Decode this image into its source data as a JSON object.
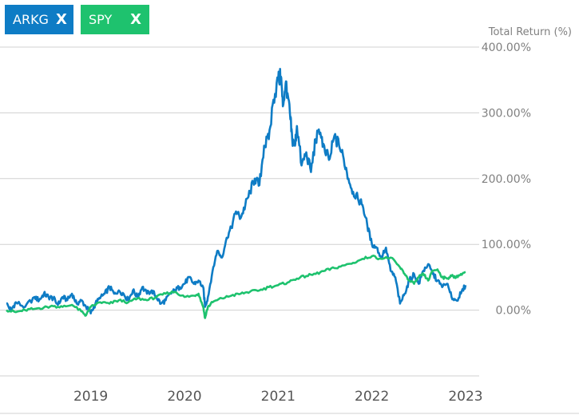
{
  "legend": [
    {
      "label": "ARKG",
      "close": "X",
      "color": "#0e7cc5"
    },
    {
      "label": "SPY",
      "close": "X",
      "color": "#1ec26e"
    }
  ],
  "chart_data": {
    "type": "line",
    "ylabel": "Total Return (%)",
    "y_ticks": [
      "400.00%",
      "300.00%",
      "200.00%",
      "100.00%",
      "0.00%"
    ],
    "y_tick_values": [
      400,
      300,
      200,
      100,
      0
    ],
    "ylim": [
      -100,
      400
    ],
    "x_ticks": [
      "2019",
      "2020",
      "2021",
      "2022",
      "2023"
    ],
    "x_tick_values": [
      2019,
      2020,
      2021,
      2022,
      2023
    ],
    "xlim": [
      2018.1,
      2023.0
    ],
    "series": [
      {
        "name": "ARKG",
        "color": "#0e7cc5",
        "x": [
          2018.1,
          2018.15,
          2018.2,
          2018.3,
          2018.4,
          2018.45,
          2018.5,
          2018.55,
          2018.6,
          2018.65,
          2018.7,
          2018.75,
          2018.8,
          2018.85,
          2018.9,
          2018.95,
          2019.0,
          2019.05,
          2019.1,
          2019.15,
          2019.2,
          2019.25,
          2019.3,
          2019.35,
          2019.4,
          2019.45,
          2019.5,
          2019.55,
          2019.6,
          2019.65,
          2019.7,
          2019.75,
          2019.8,
          2019.85,
          2019.9,
          2019.95,
          2020.0,
          2020.05,
          2020.1,
          2020.15,
          2020.2,
          2020.22,
          2020.25,
          2020.3,
          2020.35,
          2020.4,
          2020.45,
          2020.5,
          2020.55,
          2020.6,
          2020.65,
          2020.7,
          2020.75,
          2020.8,
          2020.85,
          2020.9,
          2020.95,
          2021.0,
          2021.03,
          2021.05,
          2021.08,
          2021.1,
          2021.13,
          2021.15,
          2021.18,
          2021.2,
          2021.25,
          2021.3,
          2021.35,
          2021.4,
          2021.45,
          2021.5,
          2021.55,
          2021.6,
          2021.65,
          2021.7,
          2021.75,
          2021.8,
          2021.85,
          2021.9,
          2021.95,
          2022.0,
          2022.05,
          2022.1,
          2022.15,
          2022.2,
          2022.25,
          2022.3,
          2022.35,
          2022.4,
          2022.45,
          2022.5,
          2022.55,
          2022.6,
          2022.65,
          2022.7,
          2022.75,
          2022.8,
          2022.85,
          2022.9,
          2022.95,
          2023.0
        ],
        "y": [
          10,
          0,
          12,
          5,
          20,
          15,
          25,
          20,
          18,
          8,
          20,
          15,
          25,
          10,
          15,
          5,
          -5,
          10,
          18,
          25,
          35,
          25,
          30,
          25,
          15,
          30,
          20,
          35,
          25,
          30,
          20,
          10,
          15,
          25,
          30,
          35,
          40,
          50,
          40,
          45,
          35,
          5,
          20,
          60,
          90,
          80,
          110,
          125,
          150,
          140,
          160,
          180,
          200,
          190,
          250,
          260,
          320,
          350,
          355,
          310,
          345,
          330,
          290,
          260,
          250,
          280,
          220,
          240,
          210,
          260,
          270,
          240,
          230,
          265,
          250,
          230,
          200,
          180,
          170,
          160,
          130,
          100,
          95,
          80,
          95,
          60,
          50,
          10,
          25,
          45,
          55,
          40,
          60,
          70,
          55,
          45,
          35,
          40,
          20,
          15,
          25,
          38
        ]
      },
      {
        "name": "SPY",
        "color": "#1ec26e",
        "x": [
          2018.1,
          2018.2,
          2018.3,
          2018.4,
          2018.5,
          2018.6,
          2018.7,
          2018.8,
          2018.9,
          2018.95,
          2019.0,
          2019.1,
          2019.2,
          2019.3,
          2019.4,
          2019.5,
          2019.6,
          2019.7,
          2019.8,
          2019.9,
          2020.0,
          2020.1,
          2020.15,
          2020.2,
          2020.22,
          2020.25,
          2020.3,
          2020.4,
          2020.5,
          2020.6,
          2020.7,
          2020.8,
          2020.9,
          2021.0,
          2021.1,
          2021.2,
          2021.3,
          2021.4,
          2021.5,
          2021.6,
          2021.7,
          2021.8,
          2021.9,
          2022.0,
          2022.1,
          2022.2,
          2022.3,
          2022.35,
          2022.4,
          2022.45,
          2022.5,
          2022.55,
          2022.6,
          2022.65,
          2022.7,
          2022.75,
          2022.8,
          2022.85,
          2022.9,
          2022.95,
          2023.0
        ],
        "y": [
          0,
          -3,
          0,
          2,
          4,
          6,
          5,
          8,
          -2,
          -8,
          5,
          12,
          10,
          15,
          12,
          18,
          15,
          20,
          25,
          28,
          20,
          22,
          25,
          5,
          -12,
          5,
          12,
          18,
          22,
          25,
          28,
          30,
          35,
          38,
          42,
          48,
          52,
          55,
          60,
          64,
          68,
          72,
          78,
          82,
          78,
          80,
          65,
          55,
          45,
          40,
          50,
          55,
          45,
          60,
          62,
          50,
          48,
          52,
          50,
          55,
          58
        ]
      }
    ]
  }
}
